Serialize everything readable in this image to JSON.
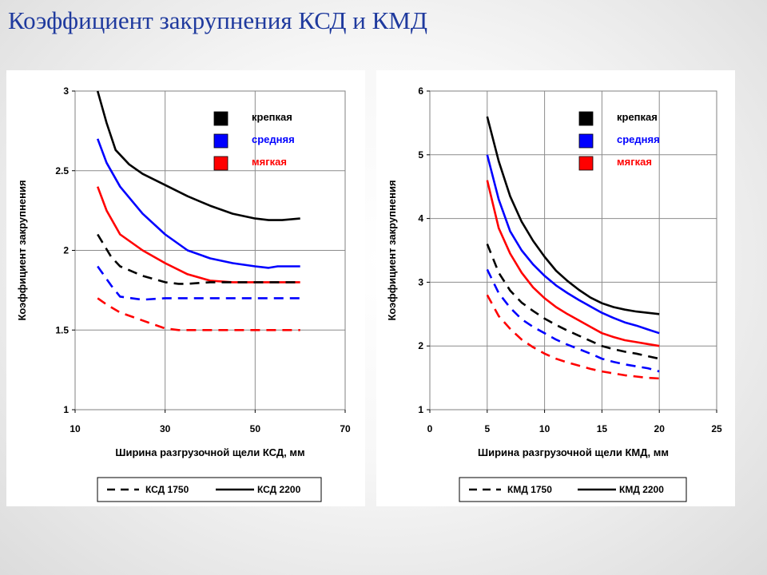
{
  "slide": {
    "title": "Коэффициент закрупнения КСД и КМД"
  },
  "colors": {
    "krepkaya": "#000000",
    "srednyaya": "#0000ff",
    "myagkaya": "#ff0000",
    "title": "#1f3a9e"
  },
  "chart_data": [
    {
      "type": "line",
      "title": "",
      "xlabel": "Ширина разгрузочной щели КСД, мм",
      "ylabel": "Коэффициент закрупнения",
      "xlim": [
        10,
        70
      ],
      "ylim": [
        1,
        3
      ],
      "xticks": [
        "10",
        "30",
        "50",
        "70"
      ],
      "yticks": [
        "1",
        "1.5",
        "2",
        "2.5",
        "3"
      ],
      "grid": true,
      "legend_top": [
        "крепкая",
        "средняя",
        "мягкая"
      ],
      "legend_bottom": {
        "dashed": "КСД 1750",
        "solid": "КСД 2200"
      },
      "series": [
        {
          "name": "крепкая",
          "machine": "КСД 2200",
          "style": "solid",
          "color": "#000000",
          "x": [
            15,
            17,
            19,
            22,
            25,
            30,
            35,
            40,
            45,
            50,
            53,
            56,
            60
          ],
          "y": [
            3.0,
            2.8,
            2.63,
            2.54,
            2.48,
            2.41,
            2.34,
            2.28,
            2.23,
            2.2,
            2.19,
            2.19,
            2.2
          ]
        },
        {
          "name": "средняя",
          "machine": "КСД 2200",
          "style": "solid",
          "color": "#0000ff",
          "x": [
            15,
            17,
            20,
            25,
            30,
            35,
            40,
            45,
            50,
            53,
            55,
            60
          ],
          "y": [
            2.7,
            2.55,
            2.4,
            2.23,
            2.1,
            2.0,
            1.95,
            1.92,
            1.9,
            1.89,
            1.9,
            1.9
          ]
        },
        {
          "name": "мягкая",
          "machine": "КСД 2200",
          "style": "solid",
          "color": "#ff0000",
          "x": [
            15,
            17,
            20,
            25,
            30,
            35,
            40,
            45,
            50,
            55,
            60
          ],
          "y": [
            2.4,
            2.25,
            2.1,
            2.0,
            1.92,
            1.85,
            1.81,
            1.8,
            1.8,
            1.8,
            1.8
          ]
        },
        {
          "name": "крепкая",
          "machine": "КСД 1750",
          "style": "dashed",
          "color": "#000000",
          "x": [
            15,
            18,
            20,
            25,
            30,
            33,
            35,
            40,
            45,
            50,
            55,
            60
          ],
          "y": [
            2.1,
            1.96,
            1.9,
            1.84,
            1.8,
            1.79,
            1.79,
            1.8,
            1.8,
            1.8,
            1.8,
            1.8
          ]
        },
        {
          "name": "средняя",
          "machine": "КСД 1750",
          "style": "dashed",
          "color": "#0000ff",
          "x": [
            15,
            18,
            20,
            25,
            30,
            35,
            40,
            45,
            50,
            55,
            60
          ],
          "y": [
            1.9,
            1.78,
            1.71,
            1.69,
            1.7,
            1.7,
            1.7,
            1.7,
            1.7,
            1.7,
            1.7
          ]
        },
        {
          "name": "мягкая",
          "machine": "КСД 1750",
          "style": "dashed",
          "color": "#ff0000",
          "x": [
            15,
            17,
            20,
            25,
            30,
            33,
            35,
            40,
            45,
            50,
            55,
            60
          ],
          "y": [
            1.7,
            1.66,
            1.61,
            1.56,
            1.51,
            1.5,
            1.5,
            1.5,
            1.5,
            1.5,
            1.5,
            1.5
          ]
        }
      ]
    },
    {
      "type": "line",
      "title": "",
      "xlabel": "Ширина разгрузочной щели КМД, мм",
      "ylabel": "Коэффициент закрупнения",
      "xlim": [
        0,
        25
      ],
      "ylim": [
        1,
        6
      ],
      "xticks": [
        "0",
        "5",
        "10",
        "15",
        "20",
        "25"
      ],
      "yticks": [
        "1",
        "2",
        "3",
        "4",
        "5",
        "6"
      ],
      "grid": true,
      "legend_top": [
        "крепкая",
        "средняя",
        "мягкая"
      ],
      "legend_bottom": {
        "dashed": "КМД 1750",
        "solid": "КМД 2200"
      },
      "series": [
        {
          "name": "крепкая",
          "machine": "КМД 2200",
          "style": "solid",
          "color": "#000000",
          "x": [
            5,
            6,
            7,
            8,
            9,
            10,
            11,
            12,
            13,
            14,
            15,
            16,
            17,
            18,
            19,
            20
          ],
          "y": [
            5.6,
            4.9,
            4.35,
            3.95,
            3.65,
            3.4,
            3.18,
            3.02,
            2.88,
            2.76,
            2.67,
            2.61,
            2.57,
            2.54,
            2.52,
            2.5
          ]
        },
        {
          "name": "средняя",
          "machine": "КМД 2200",
          "style": "solid",
          "color": "#0000ff",
          "x": [
            5,
            6,
            7,
            8,
            9,
            10,
            11,
            12,
            13,
            14,
            15,
            16,
            17,
            18,
            19,
            20
          ],
          "y": [
            5.0,
            4.3,
            3.8,
            3.5,
            3.28,
            3.1,
            2.95,
            2.83,
            2.72,
            2.62,
            2.52,
            2.44,
            2.37,
            2.32,
            2.26,
            2.2
          ]
        },
        {
          "name": "мягкая",
          "machine": "КМД 2200",
          "style": "solid",
          "color": "#ff0000",
          "x": [
            5,
            6,
            7,
            8,
            9,
            10,
            11,
            12,
            13,
            14,
            15,
            16,
            17,
            18,
            19,
            20
          ],
          "y": [
            4.6,
            3.85,
            3.45,
            3.15,
            2.92,
            2.75,
            2.61,
            2.5,
            2.4,
            2.3,
            2.2,
            2.14,
            2.09,
            2.06,
            2.03,
            2.0
          ]
        },
        {
          "name": "крепкая",
          "machine": "КМД 1750",
          "style": "dashed",
          "color": "#000000",
          "x": [
            5,
            6,
            7,
            8,
            9,
            10,
            11,
            12,
            13,
            14,
            15,
            16,
            17,
            18,
            19,
            20
          ],
          "y": [
            3.6,
            3.15,
            2.87,
            2.68,
            2.55,
            2.43,
            2.33,
            2.24,
            2.16,
            2.08,
            2.0,
            1.95,
            1.91,
            1.88,
            1.84,
            1.8
          ]
        },
        {
          "name": "средняя",
          "machine": "КМД 1750",
          "style": "dashed",
          "color": "#0000ff",
          "x": [
            5,
            6,
            7,
            8,
            9,
            10,
            11,
            12,
            13,
            14,
            15,
            16,
            17,
            18,
            19,
            20
          ],
          "y": [
            3.2,
            2.83,
            2.6,
            2.42,
            2.3,
            2.2,
            2.1,
            2.02,
            1.95,
            1.88,
            1.8,
            1.75,
            1.71,
            1.68,
            1.65,
            1.6
          ]
        },
        {
          "name": "мягкая",
          "machine": "КМД 1750",
          "style": "dashed",
          "color": "#ff0000",
          "x": [
            5,
            6,
            7,
            8,
            9,
            10,
            11,
            12,
            13,
            14,
            15,
            16,
            17,
            18,
            19,
            20
          ],
          "y": [
            2.8,
            2.47,
            2.27,
            2.1,
            1.98,
            1.88,
            1.8,
            1.74,
            1.69,
            1.64,
            1.6,
            1.57,
            1.54,
            1.52,
            1.5,
            1.49
          ]
        }
      ]
    }
  ]
}
